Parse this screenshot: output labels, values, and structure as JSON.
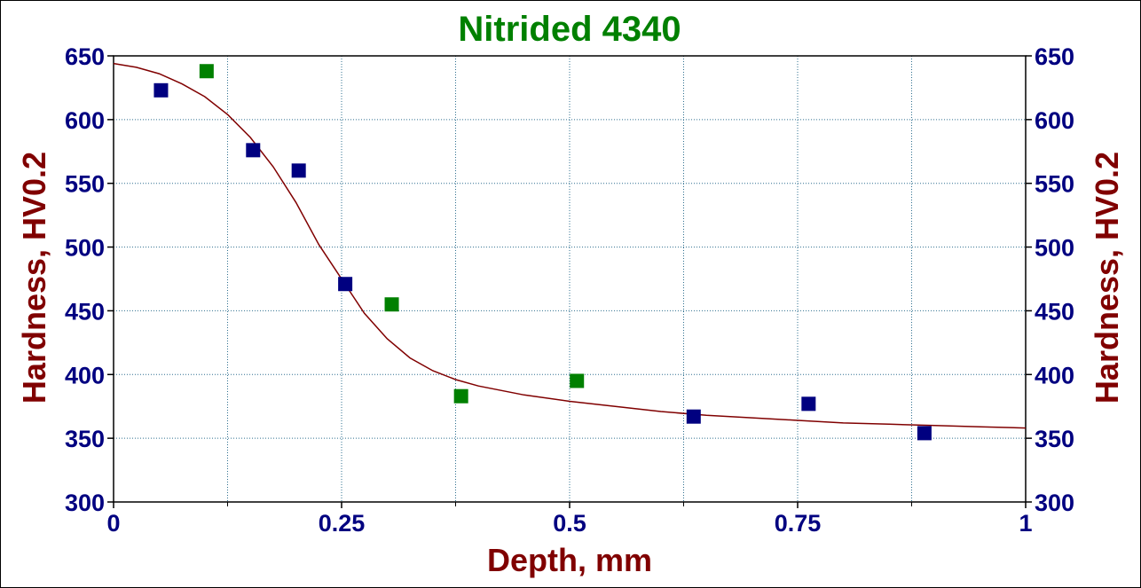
{
  "chart_data": {
    "type": "scatter",
    "title": "Nitrided 4340",
    "xlabel": "Depth, mm",
    "ylabel_left": "Hardness, HV0.2",
    "ylabel_right": "Hardness, HV0.2",
    "xlim": [
      0,
      1
    ],
    "ylim": [
      300,
      650
    ],
    "x_ticks": [
      "0",
      "0.25",
      "0.5",
      "0.75",
      "1"
    ],
    "x_tick_values": [
      0,
      0.25,
      0.5,
      0.75,
      1
    ],
    "x_minor_gridlines": [
      0.125,
      0.375,
      0.625,
      0.875
    ],
    "y_ticks": [
      "300",
      "350",
      "400",
      "450",
      "500",
      "550",
      "600",
      "650"
    ],
    "y_tick_values": [
      300,
      350,
      400,
      450,
      500,
      550,
      600,
      650
    ],
    "grid": true,
    "series": [
      {
        "marker": "square",
        "color": "#000080",
        "points": [
          [
            0.052,
            623
          ],
          [
            0.153,
            576
          ],
          [
            0.203,
            560
          ],
          [
            0.254,
            471
          ],
          [
            0.636,
            367
          ],
          [
            0.762,
            377
          ],
          [
            0.889,
            354
          ]
        ]
      },
      {
        "marker": "square",
        "color": "#008000",
        "points": [
          [
            0.102,
            638
          ],
          [
            0.305,
            455
          ],
          [
            0.381,
            383
          ],
          [
            0.508,
            395
          ]
        ]
      },
      {
        "type": "line",
        "color": "#800000",
        "points": [
          [
            0.0,
            644
          ],
          [
            0.025,
            641
          ],
          [
            0.05,
            636
          ],
          [
            0.075,
            628
          ],
          [
            0.1,
            618
          ],
          [
            0.125,
            604
          ],
          [
            0.15,
            586
          ],
          [
            0.175,
            563
          ],
          [
            0.2,
            535
          ],
          [
            0.225,
            502
          ],
          [
            0.25,
            475
          ],
          [
            0.275,
            448
          ],
          [
            0.3,
            428
          ],
          [
            0.325,
            413
          ],
          [
            0.35,
            403
          ],
          [
            0.375,
            396
          ],
          [
            0.4,
            391
          ],
          [
            0.45,
            384
          ],
          [
            0.5,
            379
          ],
          [
            0.55,
            375
          ],
          [
            0.6,
            371
          ],
          [
            0.65,
            368
          ],
          [
            0.7,
            366
          ],
          [
            0.75,
            364
          ],
          [
            0.8,
            362
          ],
          [
            0.85,
            361
          ],
          [
            0.9,
            360
          ],
          [
            0.95,
            359
          ],
          [
            1.0,
            358
          ]
        ]
      }
    ],
    "colors": {
      "title": "#008000",
      "ticks": "#000080",
      "axis_labels": "#800000",
      "grid": "#2e6f8f"
    }
  }
}
